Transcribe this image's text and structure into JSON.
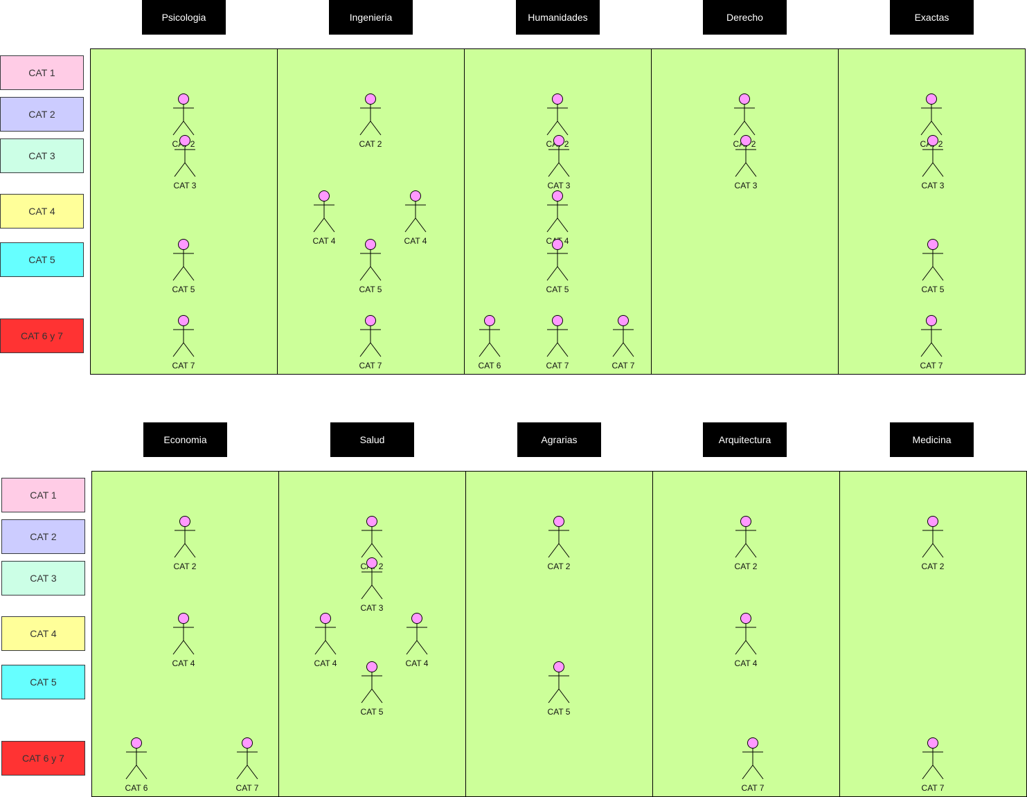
{
  "faculties_top": [
    "Psicologia",
    "Ingenieria",
    "Humanidades",
    "Derecho",
    "Exactas"
  ],
  "faculties_bottom": [
    "Economia",
    "Salud",
    "Agrarias",
    "Arquitectura",
    "Medicina"
  ],
  "legend": [
    {
      "label": "CAT 1",
      "color": "#ffcce6"
    },
    {
      "label": "CAT 2",
      "color": "#ccccff"
    },
    {
      "label": "CAT 3",
      "color": "#ccffe6"
    },
    {
      "label": "CAT 4",
      "color": "#ffff99"
    },
    {
      "label": "CAT 5",
      "color": "#66ffff"
    },
    {
      "label": "CAT 6 y 7",
      "color": "#ff3333"
    }
  ],
  "column_fill": "#ccff99",
  "actor_head_color": "#ff99ff",
  "actors": {
    "top": [
      [
        "CAT 2",
        "CAT 3",
        "CAT 5",
        "CAT 7"
      ],
      [
        "CAT 2",
        "CAT 4",
        "CAT 4",
        "CAT 5",
        "CAT 7"
      ],
      [
        "CAT 2",
        "CAT 3",
        "CAT 4",
        "CAT 5",
        "CAT 6",
        "CAT 7",
        "CAT 7"
      ],
      [
        "CAT 2",
        "CAT 3"
      ],
      [
        "CAT 2",
        "CAT 3",
        "CAT 5",
        "CAT 7"
      ]
    ],
    "bottom": [
      [
        "CAT 2",
        "CAT 4",
        "CAT 6",
        "CAT 7"
      ],
      [
        "CAT 2",
        "CAT 3",
        "CAT 4",
        "CAT 4",
        "CAT 5"
      ],
      [
        "CAT 2",
        "CAT 5"
      ],
      [
        "CAT 2",
        "CAT 4",
        "CAT 7"
      ],
      [
        "CAT 2",
        "CAT 7"
      ]
    ]
  }
}
